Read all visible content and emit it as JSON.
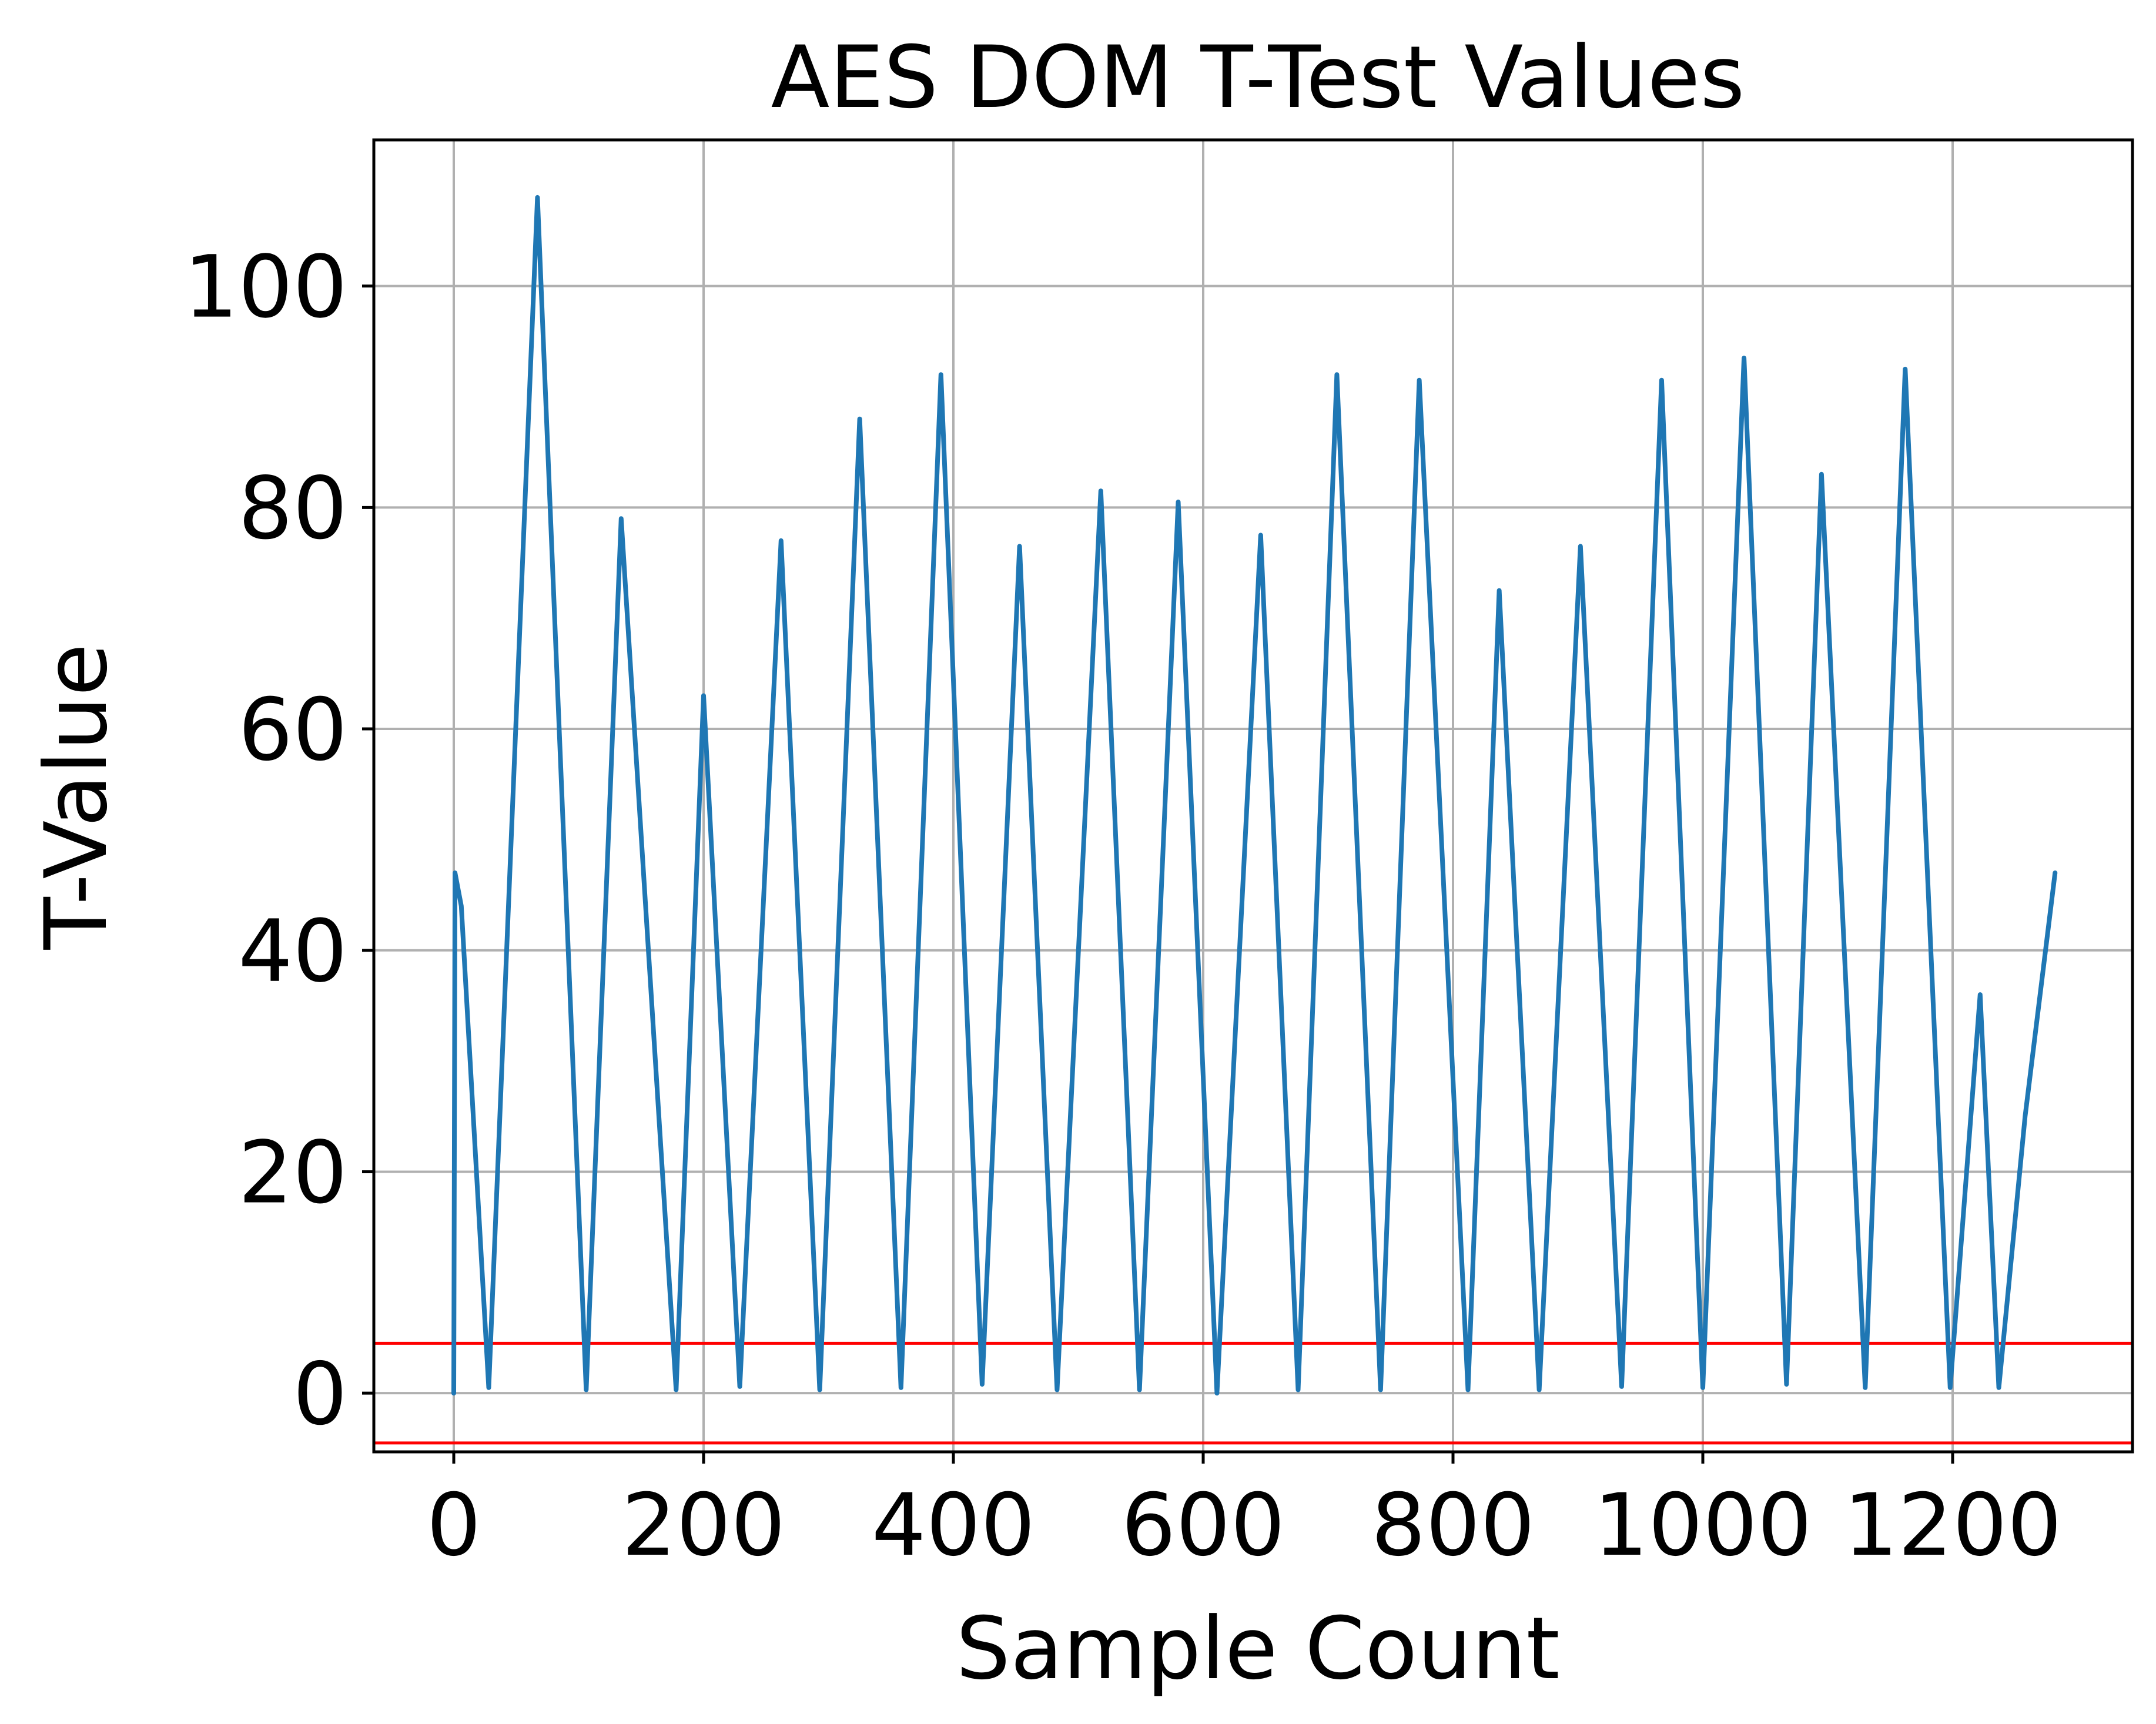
{
  "colors": {
    "series": "#1f77b4",
    "threshold": "#ff0000",
    "grid": "#b0b0b0",
    "axes": "#000000",
    "background": "#ffffff"
  },
  "chart_data": {
    "type": "line",
    "title": "AES DOM T-Test Values",
    "xlabel": "Sample Count",
    "ylabel": "T-Value",
    "xlim": [
      -64,
      1344
    ],
    "ylim": [
      -5.3,
      113.2
    ],
    "grid": true,
    "legend": "none",
    "x_ticks": [
      0,
      200,
      400,
      600,
      800,
      1000,
      1200
    ],
    "x_tick_labels": [
      "0",
      "200",
      "400",
      "600",
      "800",
      "1000",
      "1200"
    ],
    "y_ticks": [
      0,
      20,
      40,
      60,
      80,
      100
    ],
    "y_tick_labels": [
      "0",
      "20",
      "40",
      "60",
      "80",
      "100"
    ],
    "thresholds": [
      4.5,
      -4.5
    ],
    "series": [
      {
        "points": [
          [
            0,
            0
          ],
          [
            1,
            47
          ],
          [
            6,
            44
          ],
          [
            28,
            0.5
          ],
          [
            67,
            108
          ],
          [
            106,
            0.3
          ],
          [
            134,
            79
          ],
          [
            178,
            0.3
          ],
          [
            200,
            63
          ],
          [
            229,
            0.6
          ],
          [
            262,
            77
          ],
          [
            293,
            0.3
          ],
          [
            325,
            88
          ],
          [
            358,
            0.5
          ],
          [
            390,
            92
          ],
          [
            423,
            0.8
          ],
          [
            453,
            76.5
          ],
          [
            483,
            0.3
          ],
          [
            518,
            81.5
          ],
          [
            549,
            0.3
          ],
          [
            580,
            80.5
          ],
          [
            611,
            0
          ],
          [
            646,
            77.5
          ],
          [
            676,
            0.3
          ],
          [
            707,
            92
          ],
          [
            742,
            0.3
          ],
          [
            773,
            91.5
          ],
          [
            812,
            0.3
          ],
          [
            837,
            72.5
          ],
          [
            869,
            0.3
          ],
          [
            902,
            76.5
          ],
          [
            935,
            0.6
          ],
          [
            967,
            91.5
          ],
          [
            1000,
            0.5
          ],
          [
            1033,
            93.5
          ],
          [
            1067,
            0.8
          ],
          [
            1095,
            83
          ],
          [
            1130,
            0.5
          ],
          [
            1162,
            92.5
          ],
          [
            1198,
            0.5
          ],
          [
            1222,
            36
          ],
          [
            1237,
            0.5
          ],
          [
            1258,
            25
          ],
          [
            1282,
            47
          ]
        ]
      }
    ]
  }
}
